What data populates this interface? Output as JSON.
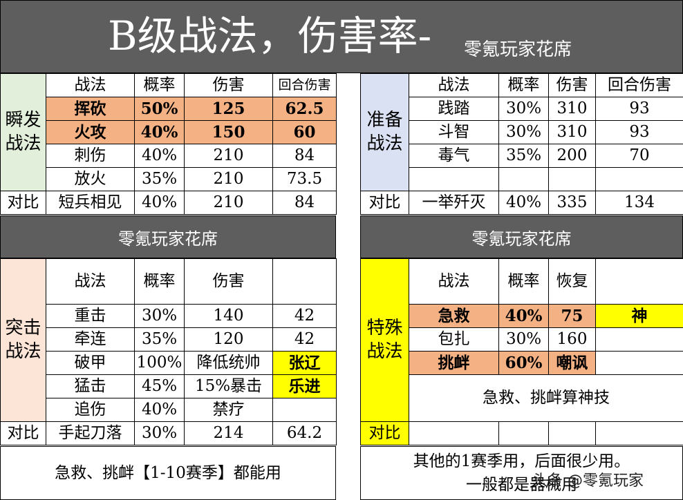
{
  "header": {
    "title": "B级战法，伤害率-",
    "subtitle": "零氪玩家花席"
  },
  "burst": {
    "side": "瞬发\n战法",
    "cols": [
      "战法",
      "概率",
      "伤害",
      "回合伤害"
    ],
    "rows": [
      [
        "挥砍",
        "50%",
        "125",
        "62.5"
      ],
      [
        "火攻",
        "40%",
        "150",
        "60"
      ],
      [
        "刺伤",
        "40%",
        "210",
        "84"
      ],
      [
        "放火",
        "35%",
        "210",
        "73.5"
      ]
    ],
    "compare_label": "对比",
    "compare": [
      "短兵相见",
      "40%",
      "210",
      "84"
    ]
  },
  "prep": {
    "side": "准备\n战法",
    "cols": [
      "战法",
      "概率",
      "伤害",
      "回合伤害"
    ],
    "rows": [
      [
        "践踏",
        "30%",
        "310",
        "93"
      ],
      [
        "斗智",
        "30%",
        "310",
        "93"
      ],
      [
        "毒气",
        "35%",
        "200",
        "70"
      ],
      [
        "",
        "",
        "",
        ""
      ]
    ],
    "compare_label": "对比",
    "compare": [
      "一举歼灭",
      "40%",
      "335",
      "134"
    ]
  },
  "band_left": "零氪玩家花席",
  "band_right": "零氪玩家花席",
  "assault": {
    "side": "突击\n战法",
    "cols": [
      "战法",
      "概率",
      "伤害",
      ""
    ],
    "rows": [
      [
        "重击",
        "30%",
        "140",
        "42"
      ],
      [
        "牵连",
        "35%",
        "120",
        "42"
      ],
      [
        "破甲",
        "100%",
        "降低统帅",
        "张辽"
      ],
      [
        "猛击",
        "45%",
        "15%暴击",
        "乐进"
      ],
      [
        "追伤",
        "40%",
        "禁疗",
        ""
      ]
    ],
    "compare_label": "对比",
    "compare": [
      "手起刀落",
      "30%",
      "214",
      "64.2"
    ]
  },
  "special": {
    "side": "特殊\n战法",
    "cols": [
      "战法",
      "概率",
      "恢复",
      ""
    ],
    "rows": [
      [
        "急救",
        "40%",
        "75",
        "神"
      ],
      [
        "包扎",
        "30%",
        "160",
        ""
      ],
      [
        "挑衅",
        "60%",
        "嘲讽",
        ""
      ]
    ],
    "note": "急救、挑衅算神技",
    "compare_label": "对比"
  },
  "notes": {
    "left": "急救、挑衅【1-10赛季】都能用",
    "right_line1": "其他的1赛季用，后面很少用。",
    "right_line2": "一般都是器械用"
  },
  "watermark": "头条 @零氪玩家",
  "colors": {
    "header_bg": "#5e5e5e",
    "highlight": "#f4b183",
    "yellow": "#ffff00",
    "green": "#e2efda",
    "blue": "#d9e1f2",
    "peach": "#fce4d6"
  }
}
